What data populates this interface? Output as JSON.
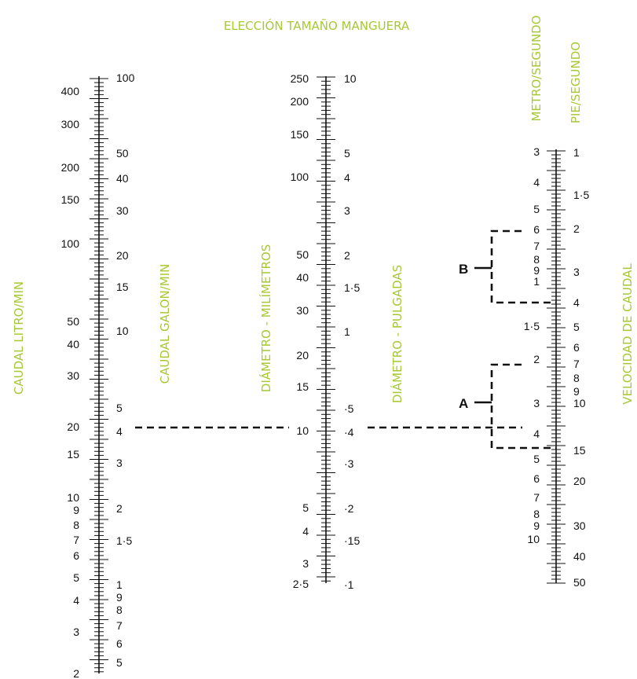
{
  "title": "ELECCIÓN TAMAÑO MANGUERA",
  "accent_color": "#a6c933",
  "ink_color": "#111111",
  "axis_titles": {
    "caudal_litro": "CAUDAL LITRO/MIN",
    "caudal_galon": "CAUDAL GALON/MIN",
    "diametro_mm": "DIÁMETRO - MILÍMETROS",
    "diametro_in": "DIÁMETRO - PULGADAS",
    "velocidad": "VELOCIDAD DE CAUDAL",
    "metro_segundo": "METRO/SEGUNDO",
    "pie_segundo": "PIE/SEGUNDO"
  },
  "scales": {
    "caudal_litro": [
      "400",
      "300",
      "200",
      "150",
      "100",
      "50",
      "40",
      "30",
      "20",
      "15",
      "10",
      "9",
      "8",
      "7",
      "6",
      "5",
      "4",
      "3",
      "2"
    ],
    "caudal_galon": [
      "100",
      "50",
      "40",
      "30",
      "20",
      "15",
      "10",
      "5",
      "4",
      "3",
      "2",
      "1·5",
      "1",
      "9",
      "8",
      "7",
      "6",
      "5"
    ],
    "diametro_mm": [
      "250",
      "200",
      "150",
      "100",
      "50",
      "40",
      "30",
      "20",
      "15",
      "10",
      "5",
      "4",
      "3",
      "2·5"
    ],
    "diametro_in": [
      "10",
      "5",
      "4",
      "3",
      "2",
      "1·5",
      "1",
      "·5",
      "·4",
      "·3",
      "·2",
      "·15",
      "·1"
    ],
    "metro_segundo_upper": [
      "3",
      "4",
      "5",
      "6",
      "7",
      "8",
      "9",
      "1",
      "1·5",
      "2",
      "3",
      "4",
      "5",
      "6",
      "7",
      "8",
      "9",
      "10"
    ],
    "pie_segundo": [
      "1",
      "1·5",
      "2",
      "3",
      "4",
      "5",
      "6",
      "7",
      "8",
      "9",
      "10",
      "15",
      "20",
      "30",
      "40",
      "50"
    ]
  },
  "examples": {
    "a_label": "A",
    "b_label": "B"
  }
}
